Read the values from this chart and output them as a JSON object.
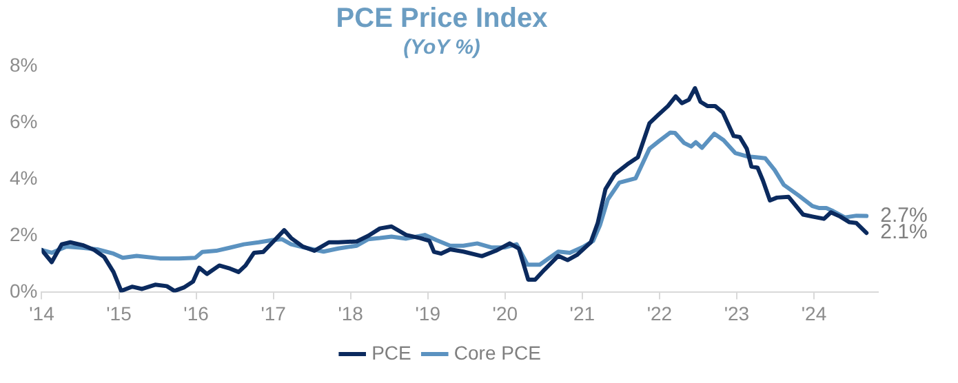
{
  "chart_data": {
    "type": "line",
    "title": "PCE Price Index",
    "subtitle": "(YoY %)",
    "xlim": [
      2014,
      2024.83
    ],
    "xticks": [
      {
        "value": 2014,
        "label": "'14"
      },
      {
        "value": 2015,
        "label": "'15"
      },
      {
        "value": 2016,
        "label": "'16"
      },
      {
        "value": 2017,
        "label": "'17"
      },
      {
        "value": 2018,
        "label": "'18"
      },
      {
        "value": 2019,
        "label": "'19"
      },
      {
        "value": 2020,
        "label": "'20"
      },
      {
        "value": 2021,
        "label": "'21"
      },
      {
        "value": 2022,
        "label": "'22"
      },
      {
        "value": 2023,
        "label": "'23"
      },
      {
        "value": 2024,
        "label": "'24"
      }
    ],
    "ylim": [
      0,
      8
    ],
    "yticks": [
      {
        "value": 0,
        "label": "0%"
      },
      {
        "value": 2,
        "label": "2%"
      },
      {
        "value": 4,
        "label": "4%"
      },
      {
        "value": 6,
        "label": "6%"
      },
      {
        "value": 8,
        "label": "8%"
      }
    ],
    "grid": false,
    "legend": "bottom",
    "marker": "none",
    "line_style": "solid",
    "series": [
      {
        "name": "PCE",
        "color": "#0b2a5e",
        "x": [
          2014,
          2014.13,
          2014.26,
          2014.37,
          2014.53,
          2014.68,
          2014.81,
          2014.93,
          2015.03,
          2015.17,
          2015.3,
          2015.47,
          2015.62,
          2015.72,
          2015.84,
          2015.96,
          2016.04,
          2016.14,
          2016.3,
          2016.44,
          2016.55,
          2016.64,
          2016.75,
          2016.87,
          2016.99,
          2017.14,
          2017.23,
          2017.38,
          2017.53,
          2017.72,
          2017.84,
          2018.08,
          2018.23,
          2018.38,
          2018.53,
          2018.72,
          2018.9,
          2019.02,
          2019.08,
          2019.17,
          2019.29,
          2019.46,
          2019.7,
          2019.88,
          2020.06,
          2020.18,
          2020.3,
          2020.39,
          2020.51,
          2020.69,
          2020.81,
          2020.93,
          2021.11,
          2021.2,
          2021.3,
          2021.42,
          2021.6,
          2021.72,
          2021.87,
          2021.99,
          2022.11,
          2022.21,
          2022.29,
          2022.38,
          2022.46,
          2022.53,
          2022.62,
          2022.72,
          2022.82,
          2022.96,
          2023.04,
          2023.13,
          2023.19,
          2023.27,
          2023.34,
          2023.43,
          2023.52,
          2023.67,
          2023.86,
          2023.98,
          2024.13,
          2024.22,
          2024.34,
          2024.46,
          2024.55,
          2024.68
        ],
        "values": [
          1.5,
          1.07,
          1.7,
          1.77,
          1.67,
          1.5,
          1.25,
          0.72,
          0.05,
          0.2,
          0.12,
          0.27,
          0.22,
          0.05,
          0.17,
          0.38,
          0.87,
          0.65,
          0.95,
          0.84,
          0.72,
          0.95,
          1.4,
          1.43,
          1.77,
          2.2,
          1.92,
          1.62,
          1.47,
          1.77,
          1.77,
          1.8,
          2.0,
          2.26,
          2.33,
          2.03,
          1.92,
          1.82,
          1.43,
          1.37,
          1.52,
          1.44,
          1.28,
          1.47,
          1.73,
          1.55,
          0.45,
          0.45,
          0.8,
          1.29,
          1.14,
          1.32,
          1.77,
          2.45,
          3.65,
          4.18,
          4.56,
          4.78,
          5.98,
          6.29,
          6.59,
          6.93,
          6.69,
          6.81,
          7.22,
          6.74,
          6.59,
          6.59,
          6.36,
          5.53,
          5.49,
          5.08,
          4.45,
          4.41,
          3.95,
          3.25,
          3.35,
          3.38,
          2.75,
          2.68,
          2.6,
          2.83,
          2.68,
          2.48,
          2.45,
          2.1
        ]
      },
      {
        "name": "Core PCE",
        "color": "#5b92c0",
        "x": [
          2014,
          2014.13,
          2014.32,
          2014.5,
          2014.72,
          2014.93,
          2015.05,
          2015.23,
          2015.53,
          2015.78,
          2015.99,
          2016.08,
          2016.26,
          2016.44,
          2016.62,
          2016.81,
          2016.99,
          2017.11,
          2017.23,
          2017.41,
          2017.65,
          2017.84,
          2018.08,
          2018.23,
          2018.38,
          2018.53,
          2018.72,
          2018.96,
          2019.11,
          2019.29,
          2019.46,
          2019.64,
          2019.82,
          2020.0,
          2020.15,
          2020.29,
          2020.45,
          2020.69,
          2020.84,
          2021.02,
          2021.14,
          2021.23,
          2021.33,
          2021.48,
          2021.69,
          2021.87,
          2021.99,
          2022.14,
          2022.2,
          2022.32,
          2022.41,
          2022.47,
          2022.55,
          2022.71,
          2022.83,
          2022.98,
          2023.13,
          2023.25,
          2023.37,
          2023.49,
          2023.61,
          2023.8,
          2023.98,
          2024.07,
          2024.16,
          2024.25,
          2024.4,
          2024.55,
          2024.68
        ],
        "values": [
          1.5,
          1.4,
          1.62,
          1.58,
          1.52,
          1.37,
          1.22,
          1.29,
          1.2,
          1.2,
          1.22,
          1.43,
          1.47,
          1.58,
          1.7,
          1.77,
          1.85,
          1.88,
          1.7,
          1.58,
          1.44,
          1.55,
          1.65,
          1.88,
          1.92,
          1.97,
          1.9,
          2.03,
          1.85,
          1.65,
          1.65,
          1.73,
          1.59,
          1.59,
          1.7,
          0.98,
          0.98,
          1.44,
          1.4,
          1.62,
          1.82,
          2.38,
          3.28,
          3.88,
          4.03,
          5.08,
          5.34,
          5.65,
          5.64,
          5.28,
          5.16,
          5.31,
          5.11,
          5.61,
          5.38,
          4.93,
          4.81,
          4.78,
          4.74,
          4.33,
          3.8,
          3.43,
          3.05,
          2.98,
          2.98,
          2.87,
          2.65,
          2.71,
          2.7
        ]
      }
    ],
    "annotations": [
      {
        "text": "2.7%",
        "x": 2024.68,
        "y": 2.7
      },
      {
        "text": "2.1%",
        "x": 2024.68,
        "y": 2.1
      }
    ]
  }
}
